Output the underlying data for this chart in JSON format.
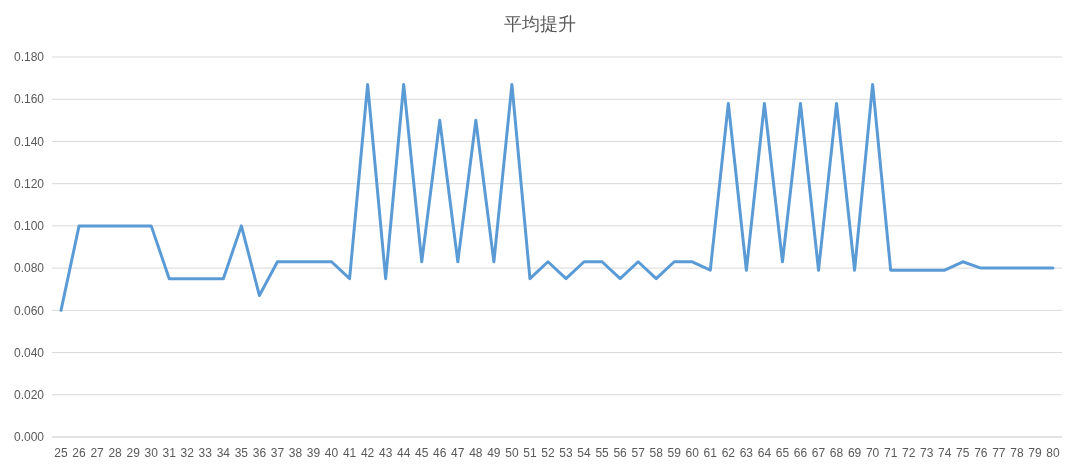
{
  "chart_data": {
    "type": "line",
    "title": "平均提升",
    "categories": [
      "25",
      "26",
      "27",
      "28",
      "29",
      "30",
      "31",
      "32",
      "33",
      "34",
      "35",
      "36",
      "37",
      "38",
      "39",
      "40",
      "41",
      "42",
      "43",
      "44",
      "45",
      "46",
      "47",
      "48",
      "49",
      "50",
      "51",
      "52",
      "53",
      "54",
      "55",
      "56",
      "57",
      "58",
      "59",
      "60",
      "61",
      "62",
      "63",
      "64",
      "65",
      "66",
      "67",
      "68",
      "69",
      "70",
      "71",
      "72",
      "73",
      "74",
      "75",
      "76",
      "77",
      "78",
      "79",
      "80"
    ],
    "series": [
      {
        "color": "#5b9bd5",
        "values": [
          0.06,
          0.1,
          0.1,
          0.1,
          0.1,
          0.1,
          0.075,
          0.075,
          0.075,
          0.075,
          0.1,
          0.067,
          0.083,
          0.083,
          0.083,
          0.083,
          0.075,
          0.167,
          0.075,
          0.167,
          0.083,
          0.15,
          0.083,
          0.15,
          0.083,
          0.167,
          0.075,
          0.083,
          0.075,
          0.083,
          0.083,
          0.075,
          0.083,
          0.075,
          0.083,
          0.083,
          0.079,
          0.158,
          0.079,
          0.158,
          0.083,
          0.158,
          0.079,
          0.158,
          0.079,
          0.167,
          0.079,
          0.079,
          0.079,
          0.079,
          0.083,
          0.08,
          0.08,
          0.08,
          0.08,
          0.08
        ]
      }
    ],
    "ylim": [
      0,
      0.18
    ],
    "yticks": [
      {
        "value": 0,
        "label": "0.000"
      },
      {
        "value": 0.02,
        "label": "0.020"
      },
      {
        "value": 0.04,
        "label": "0.040"
      },
      {
        "value": 0.06,
        "label": "0.060"
      },
      {
        "value": 0.08,
        "label": "0.080"
      },
      {
        "value": 0.1,
        "label": "0.100"
      },
      {
        "value": 0.12,
        "label": "0.120"
      },
      {
        "value": 0.14,
        "label": "0.140"
      },
      {
        "value": 0.16,
        "label": "0.160"
      },
      {
        "value": 0.18,
        "label": "0.180"
      }
    ],
    "grid": "y",
    "marker": "none",
    "line_style": "solid"
  }
}
